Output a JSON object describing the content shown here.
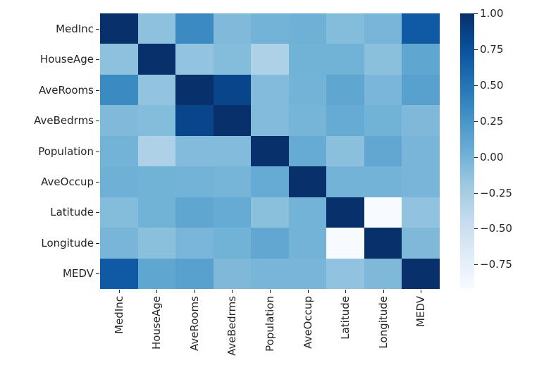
{
  "chart_data": {
    "type": "heatmap",
    "title": "",
    "xlabel": "",
    "ylabel": "",
    "colormap": "Blues",
    "vmin": -0.92,
    "vmax": 1.0,
    "x_labels": [
      "MedInc",
      "HouseAge",
      "AveRooms",
      "AveBedrms",
      "Population",
      "AveOccup",
      "Latitude",
      "Longitude",
      "MEDV"
    ],
    "y_labels": [
      "MedInc",
      "HouseAge",
      "AveRooms",
      "AveBedrms",
      "Population",
      "AveOccup",
      "Latitude",
      "Longitude",
      "MEDV"
    ],
    "values": [
      [
        1.0,
        -0.12,
        0.33,
        -0.06,
        0.0,
        0.02,
        -0.08,
        -0.02,
        0.69
      ],
      [
        -0.12,
        1.0,
        -0.15,
        -0.08,
        -0.3,
        0.01,
        0.01,
        -0.11,
        0.11
      ],
      [
        0.33,
        -0.15,
        1.0,
        0.85,
        -0.07,
        -0.0,
        0.11,
        -0.03,
        0.15
      ],
      [
        -0.06,
        -0.08,
        0.85,
        1.0,
        -0.07,
        -0.01,
        0.07,
        0.01,
        -0.05
      ],
      [
        0.0,
        -0.3,
        -0.07,
        -0.07,
        1.0,
        0.07,
        -0.11,
        0.1,
        -0.02
      ],
      [
        0.02,
        0.01,
        -0.0,
        -0.01,
        0.07,
        1.0,
        0.0,
        0.0,
        -0.02
      ],
      [
        -0.08,
        0.01,
        0.11,
        0.07,
        -0.11,
        0.0,
        1.0,
        -0.92,
        -0.14
      ],
      [
        -0.02,
        -0.11,
        -0.03,
        0.01,
        0.1,
        0.0,
        -0.92,
        1.0,
        -0.05
      ],
      [
        0.69,
        0.11,
        0.15,
        -0.05,
        -0.02,
        -0.02,
        -0.14,
        -0.05,
        1.0
      ]
    ],
    "colorbar": {
      "ticks": [
        1.0,
        0.75,
        0.5,
        0.25,
        0.0,
        -0.25,
        -0.5,
        -0.75
      ],
      "tick_labels": [
        "1.00",
        "0.75",
        "0.50",
        "0.25",
        "0.00",
        "−0.25",
        "−0.50",
        "−0.75"
      ]
    },
    "grid": false,
    "legend_position": "right"
  }
}
